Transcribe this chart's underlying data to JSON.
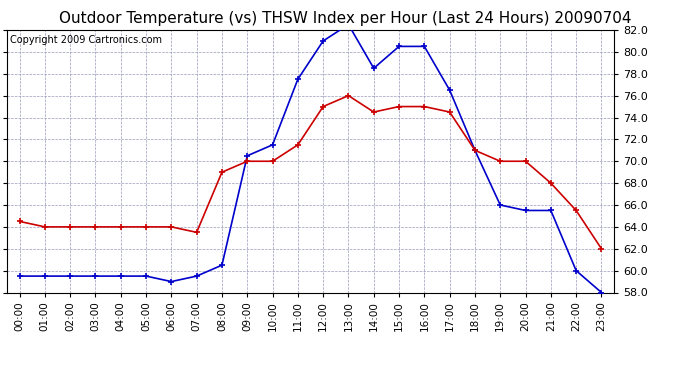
{
  "title": "Outdoor Temperature (vs) THSW Index per Hour (Last 24 Hours) 20090704",
  "copyright": "Copyright 2009 Cartronics.com",
  "hours": [
    0,
    1,
    2,
    3,
    4,
    5,
    6,
    7,
    8,
    9,
    10,
    11,
    12,
    13,
    14,
    15,
    16,
    17,
    18,
    19,
    20,
    21,
    22,
    23
  ],
  "hour_labels": [
    "00:00",
    "01:00",
    "02:00",
    "03:00",
    "04:00",
    "05:00",
    "06:00",
    "07:00",
    "08:00",
    "09:00",
    "10:00",
    "11:00",
    "12:00",
    "13:00",
    "14:00",
    "15:00",
    "16:00",
    "17:00",
    "18:00",
    "19:00",
    "20:00",
    "21:00",
    "22:00",
    "23:00"
  ],
  "temp": [
    64.5,
    64.0,
    64.0,
    64.0,
    64.0,
    64.0,
    64.0,
    63.5,
    69.0,
    70.0,
    70.0,
    71.5,
    75.0,
    76.0,
    74.5,
    75.0,
    75.0,
    74.5,
    71.0,
    70.0,
    70.0,
    68.0,
    65.5,
    62.0
  ],
  "thsw": [
    59.5,
    59.5,
    59.5,
    59.5,
    59.5,
    59.5,
    59.0,
    59.5,
    60.5,
    70.5,
    71.5,
    77.5,
    81.0,
    82.5,
    78.5,
    80.5,
    80.5,
    76.5,
    71.0,
    66.0,
    65.5,
    65.5,
    60.0,
    58.0
  ],
  "ylim_min": 58.0,
  "ylim_max": 82.0,
  "yticks": [
    58.0,
    60.0,
    62.0,
    64.0,
    66.0,
    68.0,
    70.0,
    72.0,
    74.0,
    76.0,
    78.0,
    80.0,
    82.0
  ],
  "temp_color": "#cc0000",
  "thsw_color": "#0000cc",
  "bg_color": "#ffffff",
  "grid_color": "#9999bb",
  "title_fontsize": 11,
  "copyright_fontsize": 7,
  "tick_label_fontsize": 7.5,
  "ytick_fontsize": 8
}
